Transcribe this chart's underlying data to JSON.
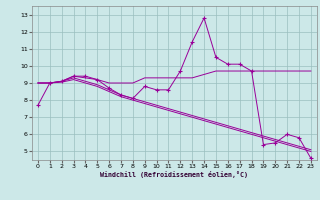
{
  "xlabel": "Windchill (Refroidissement éolien,°C)",
  "background_color": "#cce8e8",
  "grid_color": "#9bbfbf",
  "line_color": "#990099",
  "xlim": [
    -0.5,
    23.5
  ],
  "ylim": [
    4.5,
    13.5
  ],
  "xticks": [
    0,
    1,
    2,
    3,
    4,
    5,
    6,
    7,
    8,
    9,
    10,
    11,
    12,
    13,
    14,
    15,
    16,
    17,
    18,
    19,
    20,
    21,
    22,
    23
  ],
  "yticks": [
    5,
    6,
    7,
    8,
    9,
    10,
    11,
    12,
    13
  ],
  "line1_x": [
    0,
    1,
    2,
    3,
    4,
    5,
    6,
    7,
    8,
    9,
    10,
    11,
    12,
    13,
    14,
    15,
    16,
    17,
    18,
    19,
    20,
    21,
    22,
    23
  ],
  "line1_y": [
    7.7,
    9.0,
    9.1,
    9.4,
    9.4,
    9.2,
    8.7,
    8.3,
    8.1,
    8.8,
    8.6,
    8.6,
    9.7,
    11.4,
    12.8,
    10.5,
    10.1,
    10.1,
    9.7,
    5.4,
    5.5,
    6.0,
    5.8,
    4.6
  ],
  "line2_x": [
    0,
    1,
    2,
    3,
    4,
    5,
    6,
    7,
    8,
    9,
    10,
    11,
    12,
    13,
    14,
    15,
    16,
    17,
    18,
    19,
    20,
    21,
    22,
    23
  ],
  "line2_y": [
    9.0,
    9.0,
    9.1,
    9.4,
    9.3,
    9.2,
    9.0,
    9.0,
    9.0,
    9.3,
    9.3,
    9.3,
    9.3,
    9.3,
    9.5,
    9.7,
    9.7,
    9.7,
    9.7,
    9.7,
    9.7,
    9.7,
    9.7,
    9.7
  ],
  "line3_x": [
    0,
    1,
    2,
    3,
    4,
    5,
    6,
    7,
    8,
    9,
    10,
    11,
    12,
    13,
    14,
    15,
    16,
    17,
    18,
    19,
    20,
    21,
    22,
    23
  ],
  "line3_y": [
    9.0,
    9.0,
    9.1,
    9.3,
    9.1,
    8.9,
    8.6,
    8.3,
    8.1,
    7.9,
    7.7,
    7.5,
    7.3,
    7.1,
    6.9,
    6.7,
    6.5,
    6.3,
    6.1,
    5.9,
    5.7,
    5.5,
    5.3,
    5.1
  ],
  "line4_x": [
    0,
    1,
    2,
    3,
    4,
    5,
    6,
    7,
    8,
    9,
    10,
    11,
    12,
    13,
    14,
    15,
    16,
    17,
    18,
    19,
    20,
    21,
    22,
    23
  ],
  "line4_y": [
    9.0,
    9.0,
    9.05,
    9.2,
    9.0,
    8.8,
    8.5,
    8.2,
    8.0,
    7.8,
    7.6,
    7.4,
    7.2,
    7.0,
    6.8,
    6.6,
    6.4,
    6.2,
    6.0,
    5.8,
    5.6,
    5.4,
    5.2,
    5.0
  ]
}
